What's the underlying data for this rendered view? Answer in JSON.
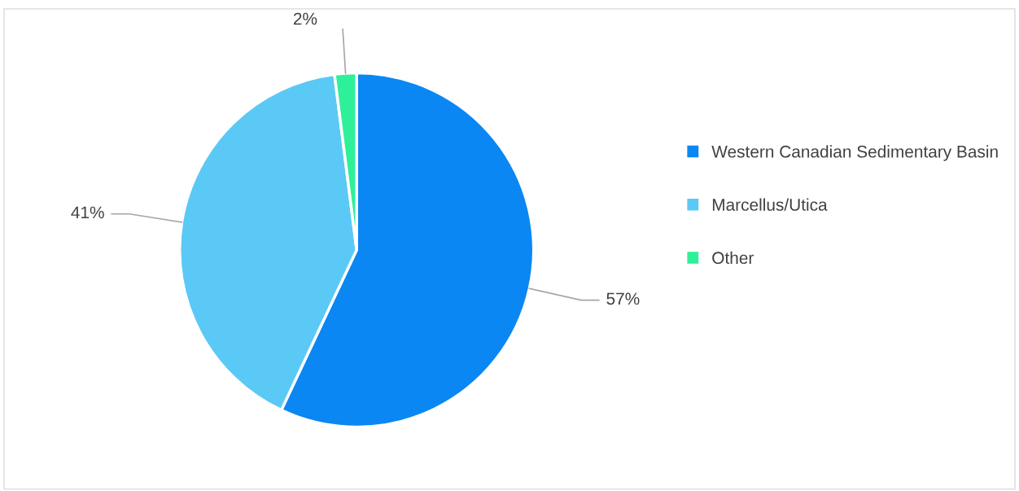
{
  "chart_data": {
    "type": "pie",
    "categories": [
      "Western Canadian Sedimentary Basin",
      "Marcellus/Utica",
      "Other"
    ],
    "values": [
      57,
      41,
      2
    ],
    "colors": [
      "#0a87f3",
      "#5bc9f5",
      "#2ff09a"
    ],
    "value_labels": [
      "57%",
      "41%",
      "2%"
    ],
    "legend": "right"
  }
}
